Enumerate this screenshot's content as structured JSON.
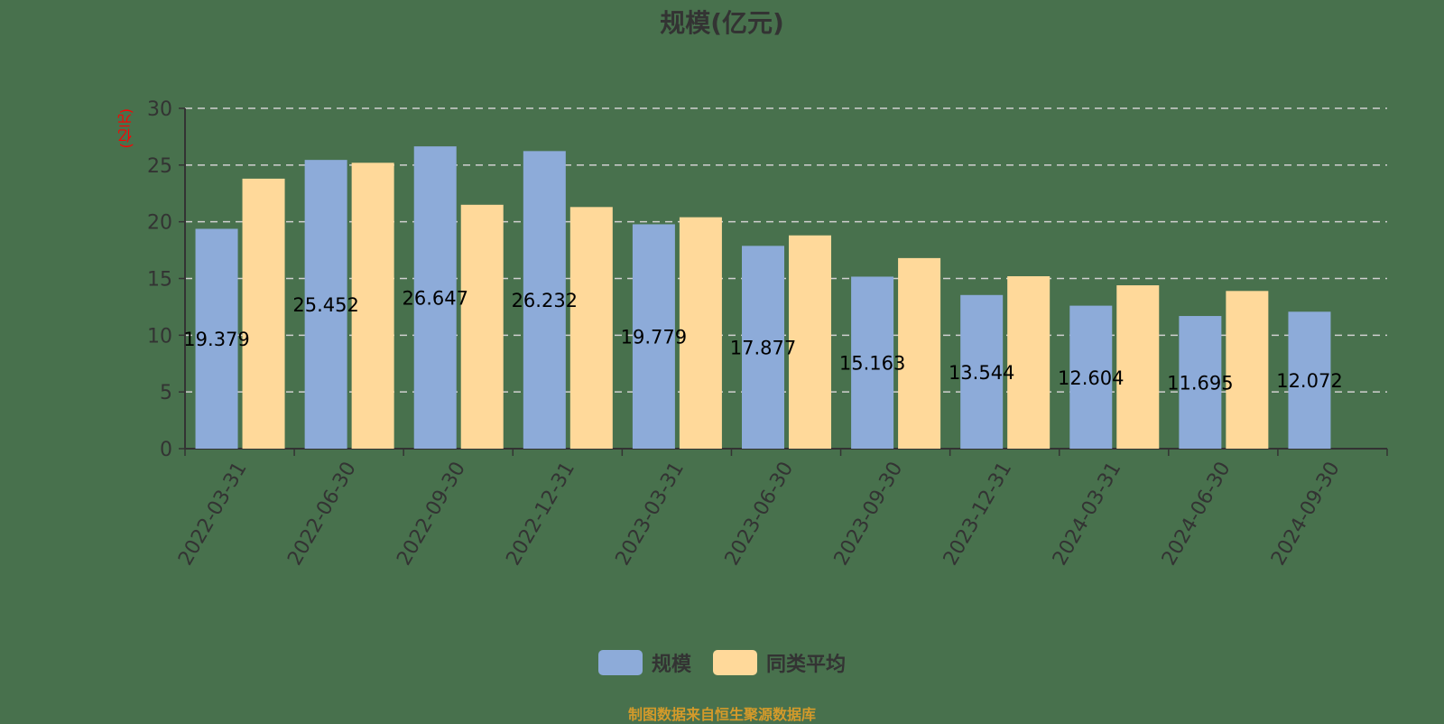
{
  "header": {
    "title": "规模(亿元)"
  },
  "axis": {
    "unit_label": "(亿元)"
  },
  "legend": {
    "items": [
      {
        "label": "规模",
        "color": "#8dabd9"
      },
      {
        "label": "同类平均",
        "color": "#ffd99a"
      }
    ]
  },
  "footer": {
    "source": "制图数据来自恒生聚源数据库"
  },
  "chart_data": {
    "type": "bar",
    "title": "规模(亿元)",
    "xlabel": "",
    "ylabel": "(亿元)",
    "ylim": [
      0,
      30
    ],
    "yticks": [
      0,
      5,
      10,
      15,
      20,
      25,
      30
    ],
    "grid": true,
    "legend_position": "bottom",
    "categories": [
      "2022-03-31",
      "2022-06-30",
      "2022-09-30",
      "2022-12-31",
      "2023-03-31",
      "2023-06-30",
      "2023-09-30",
      "2023-12-31",
      "2024-03-31",
      "2024-06-30",
      "2024-09-30"
    ],
    "series": [
      {
        "name": "规模",
        "color": "#8dabd9",
        "values": [
          19.379,
          25.452,
          26.647,
          26.232,
          19.779,
          17.877,
          15.163,
          13.544,
          12.604,
          11.695,
          12.072
        ],
        "labels": [
          "19.379",
          "25.452",
          "26.647",
          "26.232",
          "19.779",
          "17.877",
          "15.163",
          "13.544",
          "12.604",
          "11.695",
          "12.072"
        ]
      },
      {
        "name": "同类平均",
        "color": "#ffd99a",
        "values": [
          23.8,
          25.2,
          21.5,
          21.3,
          20.4,
          18.8,
          16.8,
          15.2,
          14.4,
          13.9,
          null
        ]
      }
    ]
  }
}
